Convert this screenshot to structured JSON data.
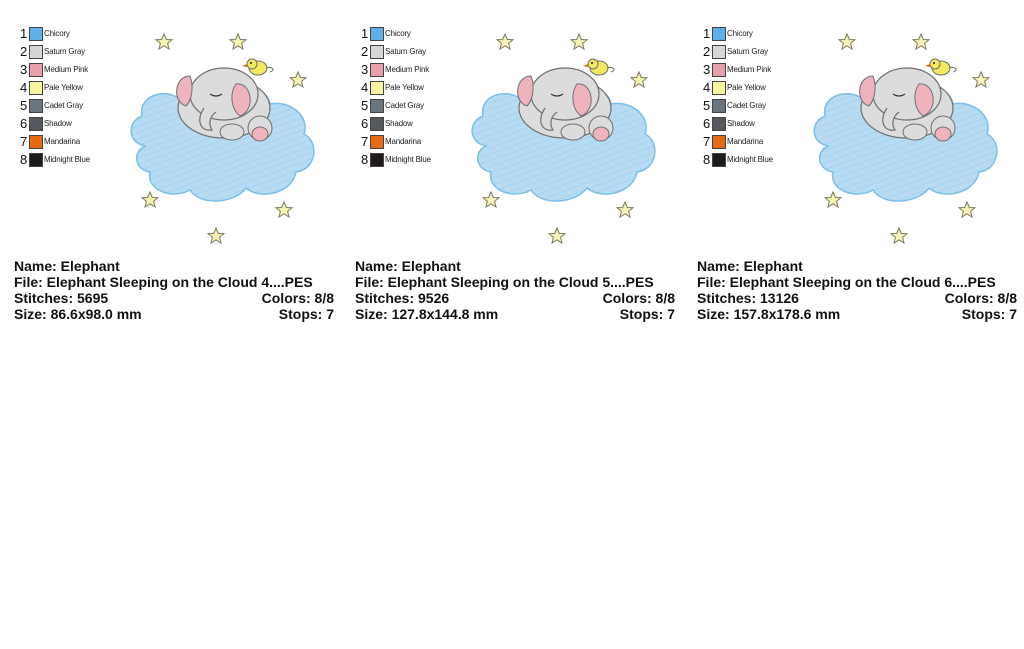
{
  "legend": {
    "entries": [
      {
        "num": "1",
        "name": "Chicory",
        "color": "#5fb0e8"
      },
      {
        "num": "2",
        "name": "Saturn Gray",
        "color": "#d6d6d6"
      },
      {
        "num": "3",
        "name": "Medium Pink",
        "color": "#e9a0ad"
      },
      {
        "num": "4",
        "name": "Pale Yellow",
        "color": "#f9f4a0"
      },
      {
        "num": "5",
        "name": "Cadet Gray",
        "color": "#6b7580"
      },
      {
        "num": "6",
        "name": "Shadow",
        "color": "#55595e"
      },
      {
        "num": "7",
        "name": "Mandarina",
        "color": "#e56a16"
      },
      {
        "num": "8",
        "name": "Midnight Blue",
        "color": "#1e1a1a"
      }
    ]
  },
  "designs": [
    {
      "name": "Name: Elephant",
      "file": "File: Elephant Sleeping on the Cloud 4....PES",
      "stitches": "Stitches: 5695",
      "colors": "Colors: 8/8",
      "size": "Size: 86.6x98.0 mm",
      "stops": "Stops: 7"
    },
    {
      "name": "Name: Elephant",
      "file": "File: Elephant Sleeping on the Cloud 5....PES",
      "stitches": "Stitches: 9526",
      "colors": "Colors: 8/8",
      "size": "Size: 127.8x144.8 mm",
      "stops": "Stops: 7"
    },
    {
      "name": "Name: Elephant",
      "file": "File: Elephant Sleeping on the Cloud 6....PES",
      "stitches": "Stitches: 13126",
      "colors": "Colors: 8/8",
      "size": "Size: 157.8x178.6 mm",
      "stops": "Stops: 7"
    }
  ],
  "palette": {
    "cloud_light": "#b7dbf2",
    "cloud_edge": "#7cbfe8",
    "elephant": "#dcdcdc",
    "elephant_line": "#6f6f6f",
    "ear_pink": "#efb3bd",
    "star": "#f7f3b5",
    "star_line": "#7a7a60",
    "bird": "#f2ea5c",
    "beak": "#e56a16"
  }
}
